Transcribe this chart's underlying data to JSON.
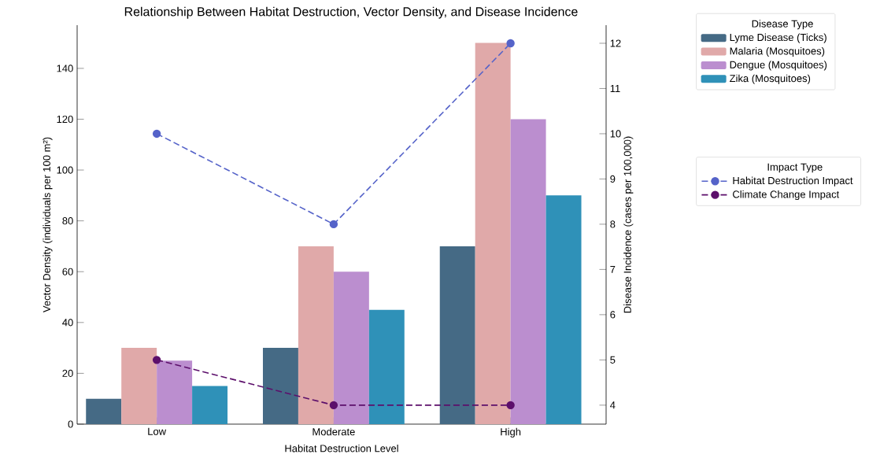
{
  "chart_data": {
    "type": "bar",
    "title": "Relationship Between Habitat Destruction, Vector Density, and Disease Incidence",
    "xlabel": "Habitat Destruction Level",
    "ylabel": "Vector Density (individuals per 100 m²)",
    "y2label": "Disease Incidence (cases per 100,000)",
    "legend_title": "Disease Type",
    "annotations": [
      "Impact Type"
    ],
    "legend": "top right",
    "categories": [
      "Low",
      "Moderate",
      "High"
    ],
    "ylim": [
      0,
      157
    ],
    "yticks": [
      0,
      20,
      40,
      60,
      80,
      100,
      120,
      140
    ],
    "y2lim": [
      3.58,
      12.4
    ],
    "y2ticks": [
      4,
      5,
      6,
      7,
      8,
      9,
      10,
      11,
      12
    ],
    "series": [
      {
        "name": "Lyme Disease (Ticks)",
        "color": "#456a85",
        "values": [
          10,
          30,
          70
        ]
      },
      {
        "name": "Malaria (Mosquitoes)",
        "color": "#e0a9a9",
        "values": [
          30,
          70,
          150
        ]
      },
      {
        "name": "Dengue (Mosquitoes)",
        "color": "#bb8ecf",
        "values": [
          25,
          60,
          120
        ]
      },
      {
        "name": "Zika (Mosquitoes)",
        "color": "#2f91b8",
        "values": [
          15,
          45,
          90
        ]
      },
      {
        "name": "Habitat Destruction Impact",
        "type": "line",
        "axis": "y2",
        "color": "#5563c9",
        "marker": "circle",
        "line_style": "dashed",
        "values": [
          10,
          8,
          12
        ]
      },
      {
        "name": "Climate Change Impact",
        "type": "line",
        "axis": "y2",
        "color": "#5c0f6b",
        "marker": "circle",
        "line_style": "dashed",
        "values": [
          5,
          4,
          4
        ]
      }
    ]
  }
}
